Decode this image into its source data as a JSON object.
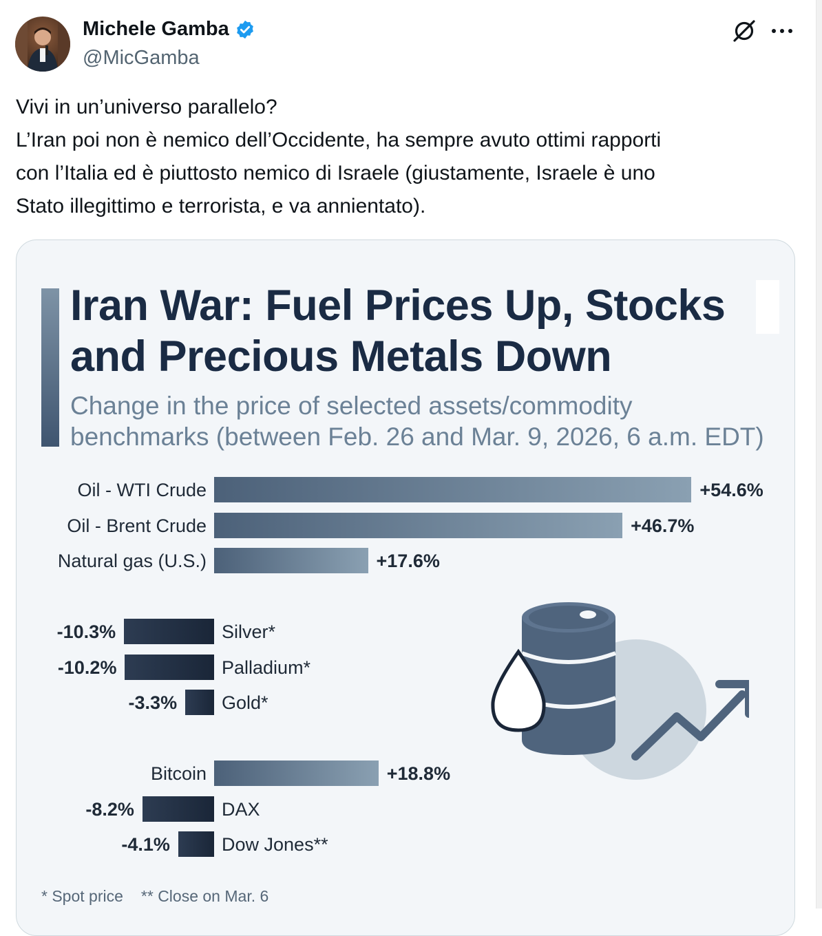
{
  "author": {
    "name": "Michele Gamba",
    "handle": "@MicGamba"
  },
  "tweet": {
    "lines": [
      "Vivi in un’universo parallelo?",
      "L’Iran poi non è nemico dell’Occidente, ha sempre avuto ottimi rapporti",
      "con l’Italia ed è piuttosto nemico di Israele (giustamente, Israele è uno",
      "Stato illegittimo e terrorista, e va annientato)."
    ]
  },
  "icons": {
    "verified": "verified-badge-icon",
    "grok": "grok-icon",
    "more": "more-options-icon",
    "illustration": "oil-barrel-icon"
  },
  "colors": {
    "verified_blue": "#1d9bf0",
    "title": "#1a2b44",
    "subtitle": "#6b8196"
  },
  "chart_data": {
    "type": "bar",
    "title_lines": [
      "Iran War: Fuel Prices Up, Stocks",
      "and Precious Metals Down"
    ],
    "subtitle_lines": [
      "Change in the price of selected assets/commodity",
      "benchmarks (between Feb. 26 and Mar. 9, 2026, 6 a.m. EDT)"
    ],
    "unit": "%",
    "categories": [
      "Oil - WTI Crude",
      "Oil - Brent Crude",
      "Natural gas (U.S.)",
      "Silver*",
      "Palladium*",
      "Gold*",
      "Bitcoin",
      "DAX",
      "Dow Jones**"
    ],
    "values": [
      54.6,
      46.7,
      17.6,
      -10.3,
      -10.2,
      -3.3,
      18.8,
      -8.2,
      -4.1
    ],
    "value_labels": [
      "+54.6%",
      "+46.7%",
      "+17.6%",
      "-10.3%",
      "-10.2%",
      "-3.3%",
      "+18.8%",
      "-8.2%",
      "-4.1%"
    ],
    "groups": [
      [
        0,
        1,
        2
      ],
      [
        3,
        4,
        5
      ],
      [
        6,
        7,
        8
      ]
    ],
    "footnotes": [
      "* Spot price",
      "** Close on Mar. 6"
    ]
  }
}
